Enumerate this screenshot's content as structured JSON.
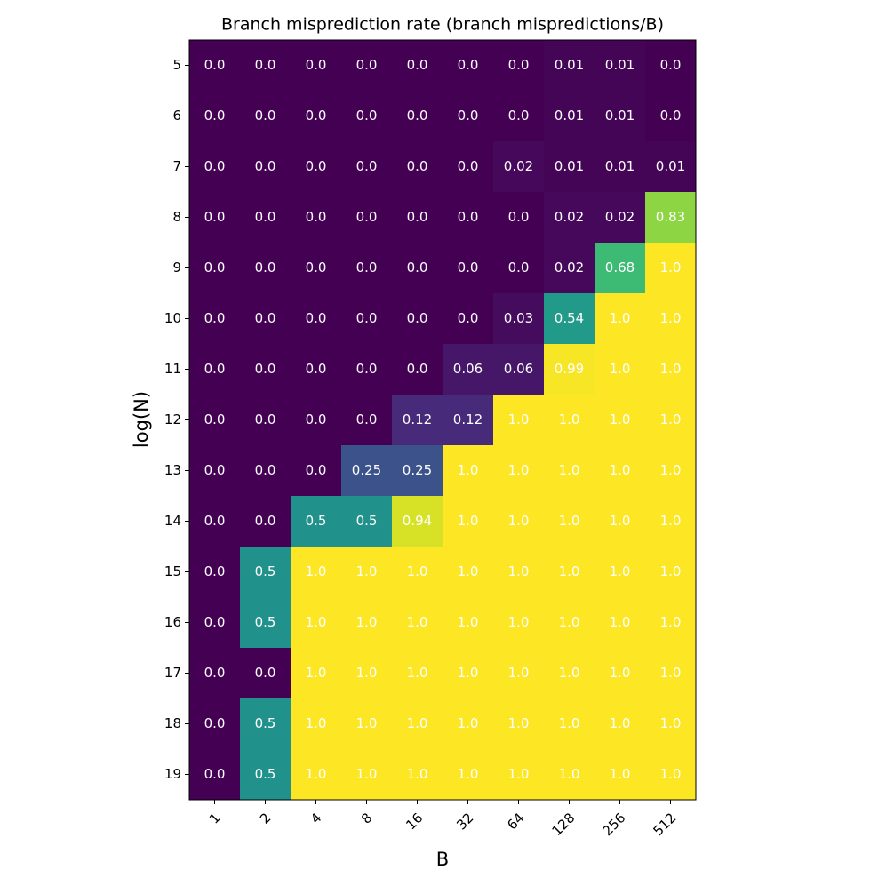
{
  "chart_data": {
    "type": "heatmap",
    "title": "Branch misprediction rate (branch mispredictions/B)",
    "xlabel": "B",
    "ylabel": "log(N)",
    "x_categories": [
      1,
      2,
      4,
      8,
      16,
      32,
      64,
      128,
      256,
      512
    ],
    "y_categories": [
      5,
      6,
      7,
      8,
      9,
      10,
      11,
      12,
      13,
      14,
      15,
      16,
      17,
      18,
      19
    ],
    "colormap": "viridis",
    "clim": [
      0,
      1
    ],
    "label_color": "#ffffff",
    "values": [
      [
        0,
        0,
        0,
        0,
        0,
        0,
        0,
        0.01,
        0.01,
        0
      ],
      [
        0,
        0,
        0,
        0,
        0,
        0,
        0,
        0.01,
        0.01,
        0
      ],
      [
        0,
        0,
        0,
        0,
        0,
        0,
        0.02,
        0.01,
        0.01,
        0.01
      ],
      [
        0,
        0,
        0,
        0,
        0,
        0,
        0,
        0.02,
        0.02,
        0.83
      ],
      [
        0,
        0,
        0,
        0,
        0,
        0,
        0,
        0.02,
        0.68,
        1
      ],
      [
        0,
        0,
        0,
        0,
        0,
        0,
        0.03,
        0.54,
        1,
        1
      ],
      [
        0,
        0,
        0,
        0,
        0,
        0.06,
        0.06,
        0.99,
        1,
        1
      ],
      [
        0,
        0,
        0,
        0,
        0.12,
        0.12,
        1,
        1,
        1,
        1
      ],
      [
        0,
        0,
        0,
        0.25,
        0.25,
        1,
        1,
        1,
        1,
        1
      ],
      [
        0,
        0,
        0.5,
        0.5,
        0.94,
        1,
        1,
        1,
        1,
        1
      ],
      [
        0,
        0.5,
        1,
        1,
        1,
        1,
        1,
        1,
        1,
        1
      ],
      [
        0,
        0.5,
        1,
        1,
        1,
        1,
        1,
        1,
        1,
        1
      ],
      [
        0,
        0,
        1,
        1,
        1,
        1,
        1,
        1,
        1,
        1
      ],
      [
        0,
        0.5,
        1,
        1,
        1,
        1,
        1,
        1,
        1,
        1
      ],
      [
        0,
        0.5,
        1,
        1,
        1,
        1,
        1,
        1,
        1,
        1
      ]
    ],
    "value_labels": [
      [
        "0.0",
        "0.0",
        "0.0",
        "0.0",
        "0.0",
        "0.0",
        "0.0",
        "0.01",
        "0.01",
        "0.0"
      ],
      [
        "0.0",
        "0.0",
        "0.0",
        "0.0",
        "0.0",
        "0.0",
        "0.0",
        "0.01",
        "0.01",
        "0.0"
      ],
      [
        "0.0",
        "0.0",
        "0.0",
        "0.0",
        "0.0",
        "0.0",
        "0.02",
        "0.01",
        "0.01",
        "0.01"
      ],
      [
        "0.0",
        "0.0",
        "0.0",
        "0.0",
        "0.0",
        "0.0",
        "0.0",
        "0.02",
        "0.02",
        "0.83"
      ],
      [
        "0.0",
        "0.0",
        "0.0",
        "0.0",
        "0.0",
        "0.0",
        "0.0",
        "0.02",
        "0.68",
        "1.0"
      ],
      [
        "0.0",
        "0.0",
        "0.0",
        "0.0",
        "0.0",
        "0.0",
        "0.03",
        "0.54",
        "1.0",
        "1.0"
      ],
      [
        "0.0",
        "0.0",
        "0.0",
        "0.0",
        "0.0",
        "0.06",
        "0.06",
        "0.99",
        "1.0",
        "1.0"
      ],
      [
        "0.0",
        "0.0",
        "0.0",
        "0.0",
        "0.12",
        "0.12",
        "1.0",
        "1.0",
        "1.0",
        "1.0"
      ],
      [
        "0.0",
        "0.0",
        "0.0",
        "0.25",
        "0.25",
        "1.0",
        "1.0",
        "1.0",
        "1.0",
        "1.0"
      ],
      [
        "0.0",
        "0.0",
        "0.5",
        "0.5",
        "0.94",
        "1.0",
        "1.0",
        "1.0",
        "1.0",
        "1.0"
      ],
      [
        "0.0",
        "0.5",
        "1.0",
        "1.0",
        "1.0",
        "1.0",
        "1.0",
        "1.0",
        "1.0",
        "1.0"
      ],
      [
        "0.0",
        "0.5",
        "1.0",
        "1.0",
        "1.0",
        "1.0",
        "1.0",
        "1.0",
        "1.0",
        "1.0"
      ],
      [
        "0.0",
        "0.0",
        "1.0",
        "1.0",
        "1.0",
        "1.0",
        "1.0",
        "1.0",
        "1.0",
        "1.0"
      ],
      [
        "0.0",
        "0.5",
        "1.0",
        "1.0",
        "1.0",
        "1.0",
        "1.0",
        "1.0",
        "1.0",
        "1.0"
      ],
      [
        "0.0",
        "0.5",
        "1.0",
        "1.0",
        "1.0",
        "1.0",
        "1.0",
        "1.0",
        "1.0",
        "1.0"
      ]
    ]
  }
}
